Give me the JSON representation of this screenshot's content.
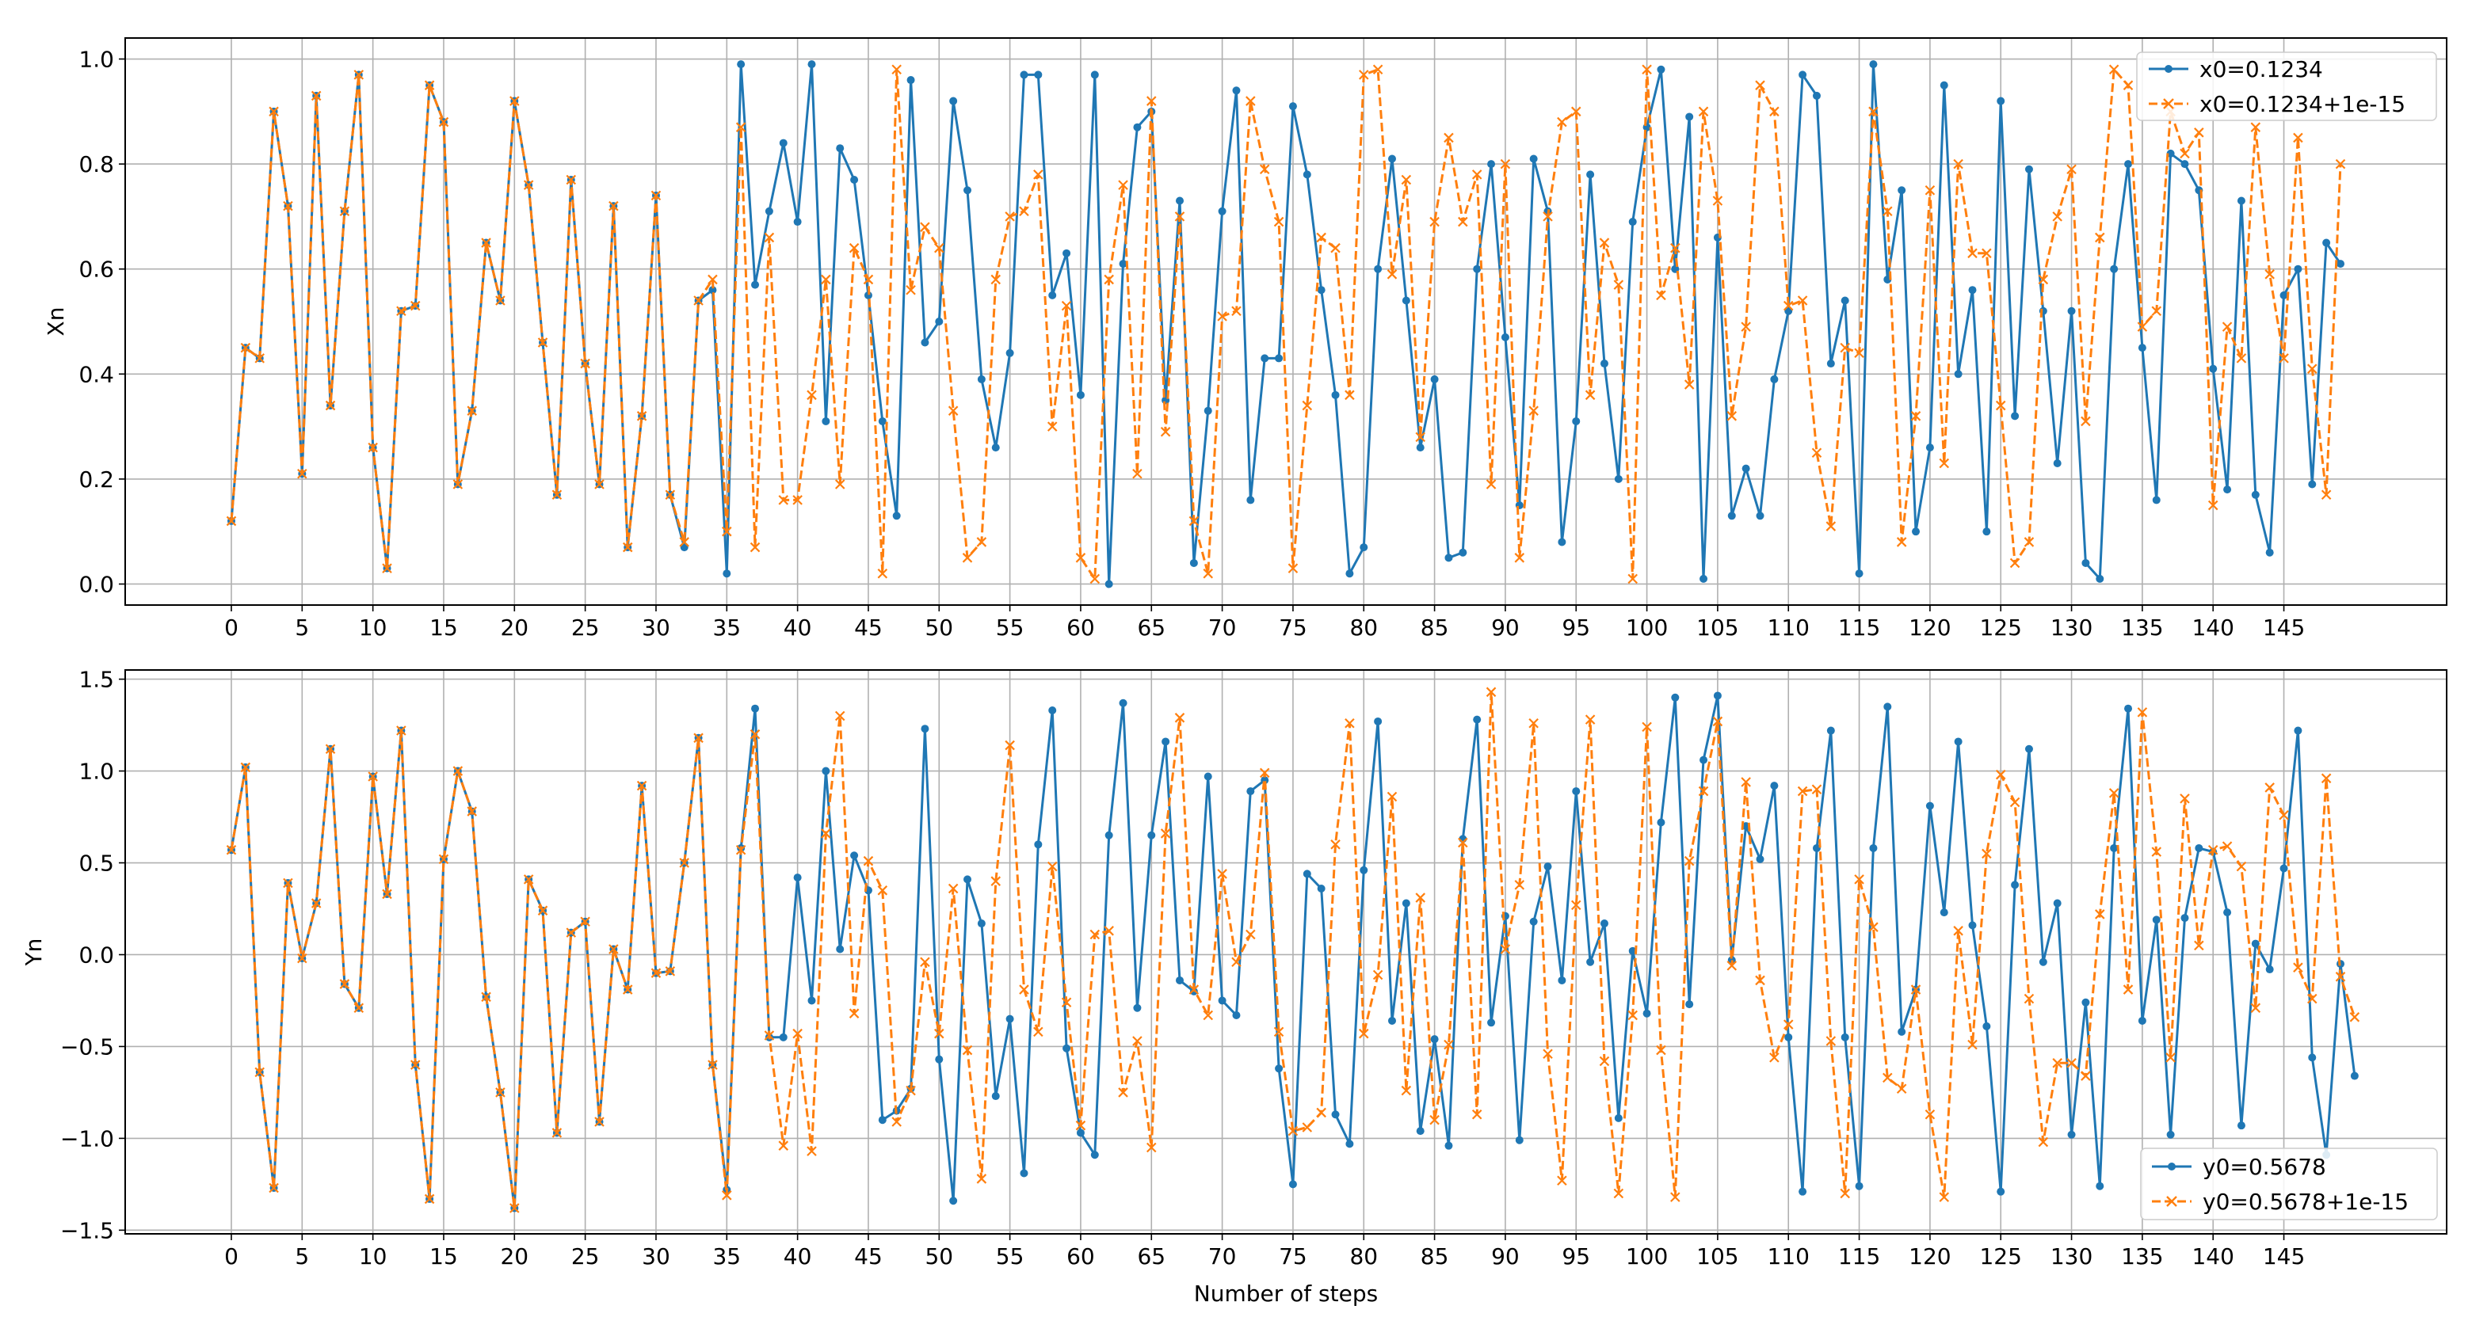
{
  "colors": {
    "series_a": "#1f77b4",
    "series_b": "#ff7f0e",
    "grid": "#b0b0b0"
  },
  "chart_data": [
    {
      "type": "line",
      "title": "",
      "xlabel": "",
      "ylabel": "Xn",
      "xlim": [
        -7.5,
        156.5
      ],
      "ylim": [
        -0.04,
        1.04
      ],
      "xticks": [
        0,
        5,
        10,
        15,
        20,
        25,
        30,
        35,
        40,
        45,
        50,
        55,
        60,
        65,
        70,
        75,
        80,
        85,
        90,
        95,
        100,
        105,
        110,
        115,
        120,
        125,
        130,
        135,
        140,
        145
      ],
      "yticks": [
        0.0,
        0.2,
        0.4,
        0.6,
        0.8,
        1.0
      ],
      "ytick_labels": [
        "0.0",
        "0.2",
        "0.4",
        "0.6",
        "0.8",
        "1.0"
      ],
      "grid": true,
      "legend_position": "top-right",
      "series": [
        {
          "name": "x0=0.1234",
          "color": "#1f77b4",
          "style": "solid",
          "marker": "dot",
          "values": [
            0.12,
            0.45,
            0.43,
            0.9,
            0.72,
            0.21,
            0.93,
            0.34,
            0.71,
            0.97,
            0.26,
            0.03,
            0.52,
            0.53,
            0.95,
            0.88,
            0.19,
            0.33,
            0.65,
            0.54,
            0.92,
            0.76,
            0.46,
            0.17,
            0.77,
            0.42,
            0.19,
            0.72,
            0.07,
            0.32,
            0.74,
            0.17,
            0.07,
            0.54,
            0.56,
            0.02,
            0.99,
            0.57,
            0.71,
            0.84,
            0.69,
            0.99,
            0.31,
            0.83,
            0.77,
            0.55,
            0.31,
            0.13,
            0.96,
            0.46,
            0.5,
            0.92,
            0.75,
            0.39,
            0.26,
            0.44,
            0.97,
            0.97,
            0.55,
            0.63,
            0.36,
            0.97,
            0.0,
            0.61,
            0.87,
            0.9,
            0.35,
            0.73,
            0.04,
            0.33,
            0.71,
            0.94,
            0.16,
            0.43,
            0.43,
            0.91,
            0.78,
            0.56,
            0.36,
            0.02,
            0.07,
            0.6,
            0.81,
            0.54,
            0.26,
            0.39,
            0.05,
            0.06,
            0.6,
            0.8,
            0.47,
            0.15,
            0.81,
            0.71,
            0.08,
            0.31,
            0.78,
            0.42,
            0.2,
            0.69,
            0.87,
            0.98,
            0.6,
            0.89,
            0.01,
            0.66,
            0.13,
            0.22,
            0.13,
            0.39,
            0.52,
            0.97,
            0.93,
            0.42,
            0.54,
            0.02,
            0.99,
            0.58,
            0.75,
            0.1,
            0.26,
            0.95,
            0.4,
            0.56,
            0.1,
            0.92,
            0.32,
            0.79,
            0.52,
            0.23,
            0.52,
            0.04,
            0.01,
            0.6,
            0.8,
            0.45,
            0.16,
            0.82,
            0.8,
            0.75,
            0.41,
            0.18,
            0.73,
            0.17,
            0.06,
            0.55,
            0.6,
            0.19,
            0.65,
            0.61
          ]
        },
        {
          "name": "x0=0.1234+1e-15",
          "color": "#ff7f0e",
          "style": "dashed",
          "marker": "x",
          "values": [
            0.12,
            0.45,
            0.43,
            0.9,
            0.72,
            0.21,
            0.93,
            0.34,
            0.71,
            0.97,
            0.26,
            0.03,
            0.52,
            0.53,
            0.95,
            0.88,
            0.19,
            0.33,
            0.65,
            0.54,
            0.92,
            0.76,
            0.46,
            0.17,
            0.77,
            0.42,
            0.19,
            0.72,
            0.07,
            0.32,
            0.74,
            0.17,
            0.08,
            0.54,
            0.58,
            0.1,
            0.87,
            0.07,
            0.66,
            0.16,
            0.16,
            0.36,
            0.58,
            0.19,
            0.64,
            0.58,
            0.02,
            0.98,
            0.56,
            0.68,
            0.64,
            0.33,
            0.05,
            0.08,
            0.58,
            0.7,
            0.71,
            0.78,
            0.3,
            0.53,
            0.05,
            0.01,
            0.58,
            0.76,
            0.21,
            0.92,
            0.29,
            0.7,
            0.12,
            0.02,
            0.51,
            0.52,
            0.92,
            0.79,
            0.69,
            0.03,
            0.34,
            0.66,
            0.64,
            0.36,
            0.97,
            0.98,
            0.59,
            0.77,
            0.28,
            0.69,
            0.85,
            0.69,
            0.78,
            0.19,
            0.8,
            0.05,
            0.33,
            0.7,
            0.88,
            0.9,
            0.36,
            0.65,
            0.57,
            0.01,
            0.98,
            0.55,
            0.64,
            0.38,
            0.9,
            0.73,
            0.32,
            0.49,
            0.95,
            0.9,
            0.53,
            0.54,
            0.25,
            0.11,
            0.45,
            0.44,
            0.9,
            0.71,
            0.08,
            0.32,
            0.75,
            0.23,
            0.8,
            0.63,
            0.63,
            0.34,
            0.04,
            0.08,
            0.58,
            0.7,
            0.79,
            0.31,
            0.66,
            0.98,
            0.95,
            0.49,
            0.52,
            0.9,
            0.82,
            0.86,
            0.15,
            0.49,
            0.43,
            0.87,
            0.59,
            0.43,
            0.85,
            0.41,
            0.17,
            0.8
          ]
        }
      ]
    },
    {
      "type": "line",
      "title": "",
      "xlabel": "Number of steps",
      "ylabel": "Yn",
      "xlim": [
        -7.5,
        156.5
      ],
      "ylim": [
        -1.52,
        1.55
      ],
      "xticks": [
        0,
        5,
        10,
        15,
        20,
        25,
        30,
        35,
        40,
        45,
        50,
        55,
        60,
        65,
        70,
        75,
        80,
        85,
        90,
        95,
        100,
        105,
        110,
        115,
        120,
        125,
        130,
        135,
        140,
        145
      ],
      "yticks": [
        -1.5,
        -1.0,
        -0.5,
        0.0,
        0.5,
        1.0,
        1.5
      ],
      "ytick_labels": [
        "−1.5",
        "−1.0",
        "−0.5",
        "0.0",
        "0.5",
        "1.0",
        "1.5"
      ],
      "grid": true,
      "legend_position": "bottom-right",
      "series": [
        {
          "name": "y0=0.5678",
          "color": "#1f77b4",
          "style": "solid",
          "marker": "dot",
          "values": [
            0.57,
            1.02,
            -0.64,
            -1.27,
            0.39,
            -0.02,
            0.28,
            1.12,
            -0.16,
            -0.29,
            0.97,
            0.33,
            1.22,
            -0.6,
            -1.33,
            0.52,
            1.0,
            0.78,
            -0.23,
            -0.75,
            -1.38,
            0.41,
            0.24,
            -0.97,
            0.12,
            0.18,
            -0.91,
            0.03,
            -0.19,
            0.92,
            -0.1,
            -0.09,
            0.5,
            1.18,
            -0.6,
            -1.28,
            0.58,
            1.34,
            -0.45,
            -0.45,
            0.42,
            -0.25,
            1.0,
            0.03,
            0.54,
            0.35,
            -0.9,
            -0.85,
            -0.73,
            1.23,
            -0.57,
            -1.34,
            0.41,
            0.17,
            -0.77,
            -0.35,
            -1.19,
            0.6,
            1.33,
            -0.51,
            -0.97,
            -1.09,
            0.65,
            1.37,
            -0.29,
            0.65,
            1.16,
            -0.14,
            -0.2,
            0.97,
            -0.25,
            -0.33,
            0.89,
            0.95,
            -0.62,
            -1.25,
            0.44,
            0.36,
            -0.87,
            -1.03,
            0.46,
            1.27,
            -0.36,
            0.28,
            -0.96,
            -0.46,
            -1.04,
            0.63,
            1.28,
            -0.37,
            0.21,
            -1.01,
            0.18,
            0.48,
            -0.14,
            0.89,
            -0.04,
            0.17,
            -0.89,
            0.02,
            -0.32,
            0.72,
            1.4,
            -0.27,
            1.06,
            1.41,
            -0.03,
            0.7,
            0.52,
            0.92,
            -0.45,
            -1.29,
            0.58,
            1.22,
            -0.45,
            -1.26,
            0.58,
            1.35,
            -0.42,
            -0.19,
            0.81,
            0.23,
            1.16,
            0.16,
            -0.39,
            -1.29,
            0.38,
            1.12,
            -0.04,
            0.28,
            -0.98,
            -0.26,
            -1.26,
            0.58,
            1.34,
            -0.36,
            0.19,
            -0.98,
            0.2,
            0.58,
            0.56,
            0.23,
            -0.93,
            0.06,
            -0.08,
            0.47,
            1.22,
            -0.56,
            -1.09,
            -0.05,
            -0.66
          ]
        },
        {
          "name": "y0=0.5678+1e-15",
          "color": "#ff7f0e",
          "style": "dashed",
          "marker": "x",
          "values": [
            0.57,
            1.02,
            -0.64,
            -1.27,
            0.39,
            -0.02,
            0.28,
            1.12,
            -0.16,
            -0.29,
            0.97,
            0.33,
            1.22,
            -0.6,
            -1.33,
            0.52,
            1.0,
            0.78,
            -0.23,
            -0.75,
            -1.38,
            0.41,
            0.24,
            -0.97,
            0.12,
            0.18,
            -0.91,
            0.03,
            -0.19,
            0.92,
            -0.1,
            -0.09,
            0.5,
            1.18,
            -0.6,
            -1.31,
            0.57,
            1.2,
            -0.44,
            -1.04,
            -0.43,
            -1.07,
            0.66,
            1.3,
            -0.32,
            0.51,
            0.35,
            -0.91,
            -0.74,
            -0.04,
            -0.43,
            0.36,
            -0.52,
            -1.22,
            0.4,
            1.14,
            -0.19,
            -0.42,
            0.48,
            -0.26,
            -0.93,
            0.11,
            0.13,
            -0.75,
            -0.47,
            -1.05,
            0.66,
            1.29,
            -0.19,
            -0.33,
            0.44,
            -0.04,
            0.11,
            0.99,
            -0.42,
            -0.96,
            -0.94,
            -0.86,
            0.6,
            1.26,
            -0.43,
            -0.11,
            0.86,
            -0.74,
            0.31,
            -0.9,
            -0.49,
            0.61,
            -0.87,
            1.43,
            0.03,
            0.38,
            1.26,
            -0.54,
            -1.23,
            0.27,
            1.28,
            -0.58,
            -1.3,
            -0.33,
            1.24,
            -0.52,
            -1.32,
            0.51,
            0.89,
            1.27,
            -0.06,
            0.94,
            -0.14,
            -0.56,
            -0.38,
            0.89,
            0.9,
            -0.47,
            -1.3,
            0.41,
            0.15,
            -0.67,
            -0.73,
            -0.19,
            -0.87,
            -1.32,
            0.13,
            -0.49,
            0.55,
            0.98,
            0.83,
            -0.24,
            -1.02,
            -0.59,
            -0.59,
            -0.66,
            0.22,
            0.88,
            -0.19,
            1.32,
            0.56,
            -0.56,
            0.85,
            0.05,
            0.57,
            0.59,
            0.48,
            -0.29,
            0.91,
            0.76,
            -0.07,
            -0.24,
            0.96,
            -0.12,
            -0.34
          ]
        }
      ]
    }
  ]
}
